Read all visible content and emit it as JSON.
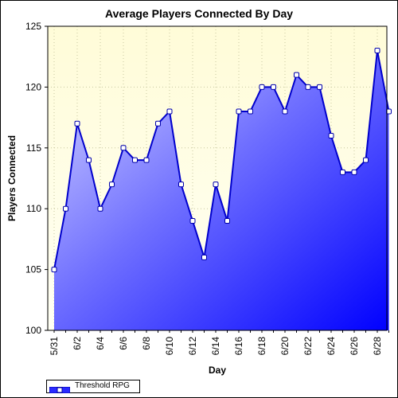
{
  "chart_data": {
    "type": "area",
    "title": "Average Players Connected By Day",
    "xlabel": "Day",
    "ylabel": "Players Connected",
    "categories": [
      "5/31",
      "6/1",
      "6/2",
      "6/3",
      "6/4",
      "6/5",
      "6/6",
      "6/7",
      "6/8",
      "6/9",
      "6/10",
      "6/11",
      "6/12",
      "6/13",
      "6/14",
      "6/15",
      "6/16",
      "6/17",
      "6/18",
      "6/19",
      "6/20",
      "6/21",
      "6/22",
      "6/23",
      "6/24",
      "6/25",
      "6/26",
      "6/27",
      "6/28",
      "6/29"
    ],
    "x_tick_labels": [
      "5/31",
      "6/2",
      "6/4",
      "6/6",
      "6/8",
      "6/10",
      "6/12",
      "6/14",
      "6/16",
      "6/18",
      "6/20",
      "6/22",
      "6/24",
      "6/26",
      "6/28"
    ],
    "series": [
      {
        "name": "Threshold RPG",
        "values": [
          105,
          110,
          117,
          114,
          110,
          112,
          115,
          114,
          114,
          117,
          118,
          112,
          109,
          106,
          112,
          109,
          118,
          118,
          120,
          120,
          118,
          121,
          120,
          120,
          116,
          113,
          113,
          114,
          123,
          118
        ]
      }
    ],
    "ylim": [
      100,
      125
    ],
    "y_ticks": [
      100,
      105,
      110,
      115,
      120,
      125
    ],
    "grid": true,
    "legend_position": "bottom-left",
    "colors": {
      "plot_background_top": "#fffde0",
      "plot_background_bottom": "#fffff0",
      "area_light": "#c8c8ff",
      "area_dark": "#0000ff",
      "line": "#0000cc",
      "marker_fill": "#ffffff",
      "grid": "#c8c8a0"
    }
  }
}
